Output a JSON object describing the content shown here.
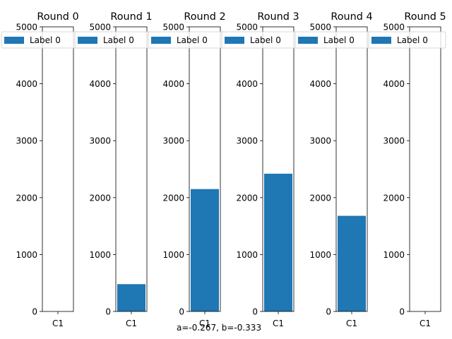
{
  "chart_data": [
    {
      "type": "bar",
      "title": "Round 0",
      "categories": [
        "C1"
      ],
      "series": [
        {
          "name": "Label 0",
          "values": [
            0
          ]
        }
      ],
      "ylim": [
        0,
        5000
      ],
      "yticks": [
        0,
        1000,
        2000,
        3000,
        4000,
        5000
      ],
      "legend": "top-left",
      "color": "#1f77b4"
    },
    {
      "type": "bar",
      "title": "Round 1",
      "categories": [
        "C1"
      ],
      "series": [
        {
          "name": "Label 0",
          "values": [
            480
          ]
        }
      ],
      "ylim": [
        0,
        5000
      ],
      "yticks": [
        0,
        1000,
        2000,
        3000,
        4000,
        5000
      ],
      "legend": "top-left",
      "color": "#1f77b4"
    },
    {
      "type": "bar",
      "title": "Round 2",
      "categories": [
        "C1"
      ],
      "series": [
        {
          "name": "Label 0",
          "values": [
            2150
          ]
        }
      ],
      "ylim": [
        0,
        5000
      ],
      "yticks": [
        0,
        1000,
        2000,
        3000,
        4000,
        5000
      ],
      "legend": "top-left",
      "color": "#1f77b4"
    },
    {
      "type": "bar",
      "title": "Round 3",
      "categories": [
        "C1"
      ],
      "series": [
        {
          "name": "Label 0",
          "values": [
            2420
          ]
        }
      ],
      "ylim": [
        0,
        5000
      ],
      "yticks": [
        0,
        1000,
        2000,
        3000,
        4000,
        5000
      ],
      "legend": "top-left",
      "color": "#1f77b4"
    },
    {
      "type": "bar",
      "title": "Round 4",
      "categories": [
        "C1"
      ],
      "series": [
        {
          "name": "Label 0",
          "values": [
            1680
          ]
        }
      ],
      "ylim": [
        0,
        5000
      ],
      "yticks": [
        0,
        1000,
        2000,
        3000,
        4000,
        5000
      ],
      "legend": "top-left",
      "color": "#1f77b4"
    },
    {
      "type": "bar",
      "title": "Round 5",
      "categories": [
        "C1"
      ],
      "series": [
        {
          "name": "Label 0",
          "values": [
            0
          ]
        }
      ],
      "ylim": [
        0,
        5000
      ],
      "yticks": [
        0,
        1000,
        2000,
        3000,
        4000,
        5000
      ],
      "legend": "top-left",
      "color": "#1f77b4"
    }
  ],
  "footer": {
    "caption": "a=-0.267, b=-0.333"
  }
}
